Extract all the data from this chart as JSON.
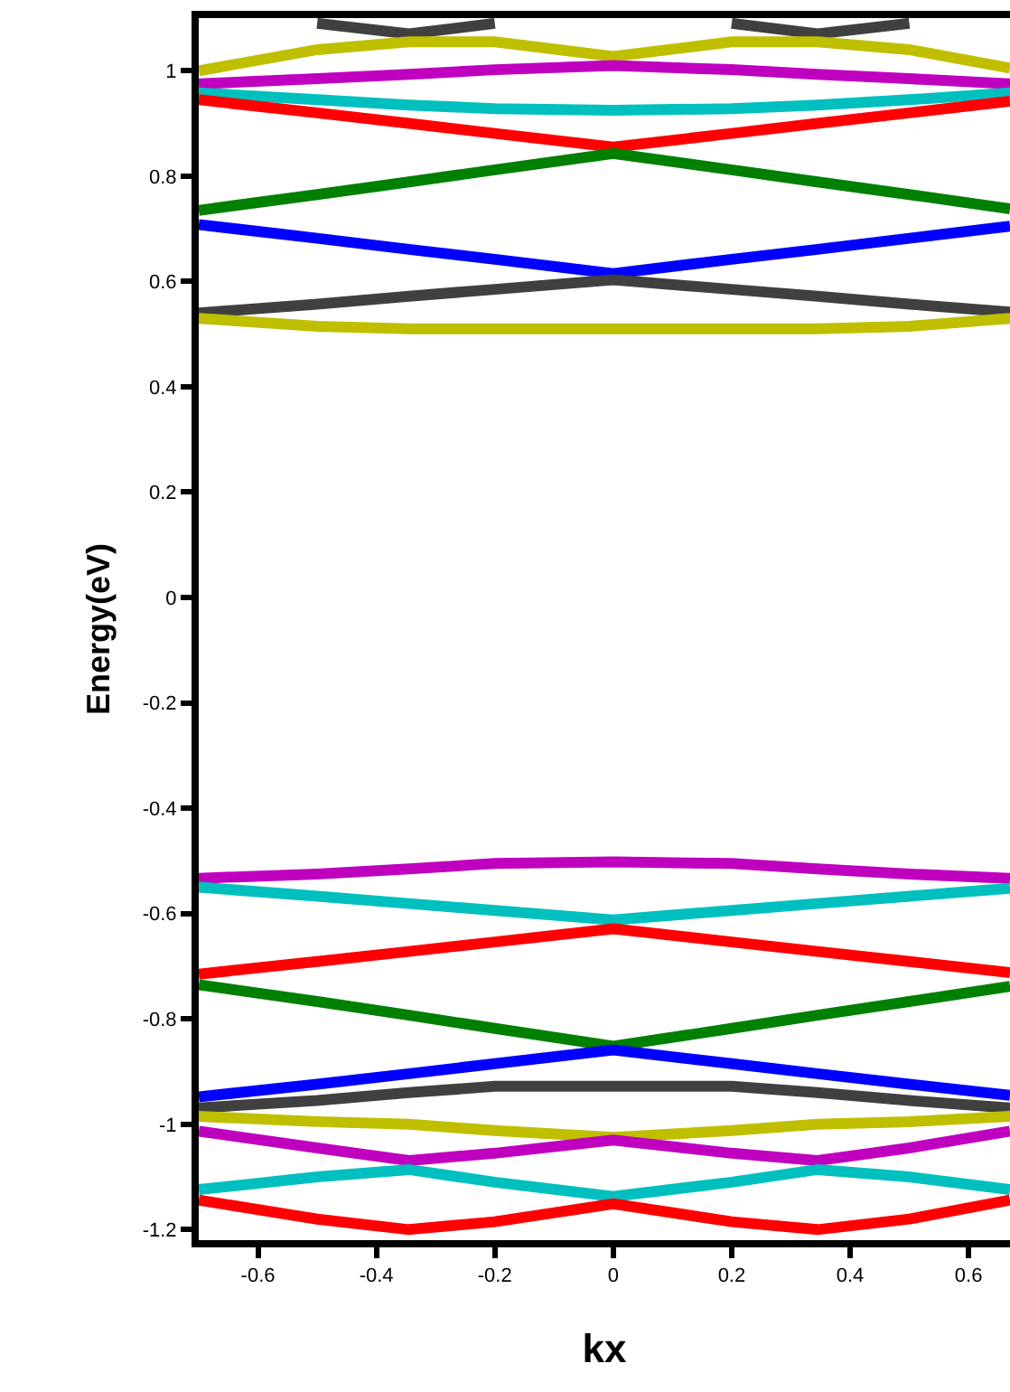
{
  "chart_data": {
    "type": "line",
    "xlabel": "kx",
    "ylabel": "Energy(eV)",
    "x": [
      -0.7,
      -0.5,
      -0.345,
      -0.2,
      0,
      0.2,
      0.345,
      0.5,
      0.67
    ],
    "xlim": [
      -0.7,
      0.67
    ],
    "ylim": [
      -1.22,
      1.1
    ],
    "xticks": [
      -0.6,
      -0.4,
      -0.2,
      0,
      0.2,
      0.4,
      0.6
    ],
    "yticks": [
      -1.2,
      -1,
      -0.8,
      -0.6,
      -0.4,
      -0.2,
      0,
      0.2,
      0.4,
      0.6,
      0.8,
      1
    ],
    "marker": "none",
    "line_style": "solid",
    "series": [
      {
        "color": "#404040",
        "values": [
          null,
          1.09,
          1.07,
          1.09,
          null,
          1.09,
          1.07,
          1.09,
          null
        ]
      },
      {
        "color": "#bfbf00",
        "values": [
          1.0,
          1.04,
          1.055,
          1.055,
          1.027,
          1.055,
          1.055,
          1.04,
          1.005
        ]
      },
      {
        "color": "#bf00bf",
        "values": [
          0.975,
          0.985,
          0.993,
          1.002,
          1.01,
          1.002,
          0.993,
          0.985,
          0.975
        ]
      },
      {
        "color": "#00bfbf",
        "values": [
          0.958,
          0.945,
          0.935,
          0.928,
          0.925,
          0.928,
          0.935,
          0.945,
          0.958
        ]
      },
      {
        "color": "#ff0000",
        "values": [
          0.945,
          0.92,
          0.9,
          0.881,
          0.855,
          0.881,
          0.9,
          0.92,
          0.942
        ]
      },
      {
        "color": "#008000",
        "values": [
          0.735,
          0.765,
          0.789,
          0.812,
          0.843,
          0.812,
          0.789,
          0.765,
          0.738
        ]
      },
      {
        "color": "#0000ff",
        "values": [
          0.708,
          0.682,
          0.661,
          0.642,
          0.615,
          0.642,
          0.661,
          0.682,
          0.705
        ]
      },
      {
        "color": "#404040",
        "values": [
          0.54,
          0.557,
          0.572,
          0.585,
          0.603,
          0.585,
          0.572,
          0.557,
          0.542
        ]
      },
      {
        "color": "#bfbf00",
        "values": [
          0.53,
          0.515,
          0.51,
          0.51,
          0.51,
          0.51,
          0.51,
          0.515,
          0.53
        ]
      },
      {
        "color": "#bf00bf",
        "values": [
          -0.533,
          -0.525,
          -0.515,
          -0.505,
          -0.502,
          -0.505,
          -0.515,
          -0.525,
          -0.533
        ]
      },
      {
        "color": "#00bfbf",
        "values": [
          -0.55,
          -0.567,
          -0.581,
          -0.594,
          -0.612,
          -0.594,
          -0.581,
          -0.567,
          -0.552
        ]
      },
      {
        "color": "#ff0000",
        "values": [
          -0.715,
          -0.691,
          -0.672,
          -0.654,
          -0.629,
          -0.654,
          -0.672,
          -0.691,
          -0.712
        ]
      },
      {
        "color": "#008000",
        "values": [
          -0.735,
          -0.767,
          -0.793,
          -0.818,
          -0.852,
          -0.818,
          -0.793,
          -0.767,
          -0.738
        ]
      },
      {
        "color": "#0000ff",
        "values": [
          -0.948,
          -0.924,
          -0.904,
          -0.885,
          -0.859,
          -0.885,
          -0.904,
          -0.924,
          -0.945
        ]
      },
      {
        "color": "#404040",
        "values": [
          -0.969,
          -0.955,
          -0.94,
          -0.928,
          -0.928,
          -0.928,
          -0.94,
          -0.955,
          -0.969
        ]
      },
      {
        "color": "#bfbf00",
        "values": [
          -0.985,
          -0.995,
          -1.0,
          -1.012,
          -1.025,
          -1.012,
          -1.0,
          -0.995,
          -0.985
        ]
      },
      {
        "color": "#bf00bf",
        "values": [
          -1.013,
          -1.045,
          -1.069,
          -1.055,
          -1.03,
          -1.055,
          -1.069,
          -1.045,
          -1.013
        ]
      },
      {
        "color": "#00bfbf",
        "values": [
          -1.124,
          -1.1,
          -1.086,
          -1.11,
          -1.137,
          -1.11,
          -1.086,
          -1.1,
          -1.124
        ]
      },
      {
        "color": "#ff0000",
        "values": [
          -1.144,
          -1.18,
          -1.2,
          -1.185,
          -1.151,
          -1.185,
          -1.2,
          -1.18,
          -1.144
        ]
      }
    ]
  }
}
